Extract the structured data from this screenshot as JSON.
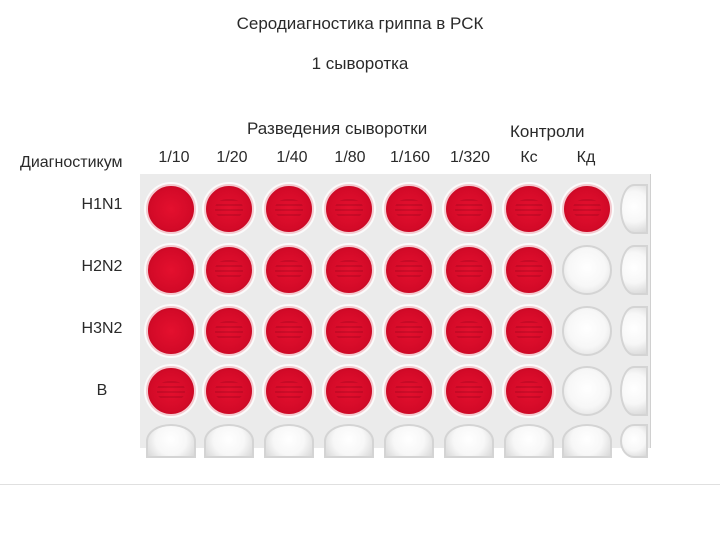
{
  "title": "Серодиагностика гриппа в РСК",
  "subtitle": "1 сыворотка",
  "header_dilutions": "Разведения сыворотки",
  "header_controls": "Контроли",
  "header_diagnosticum": "Диагностикум",
  "columns": [
    "1/10",
    "1/20",
    "1/40",
    "1/80",
    "1/160",
    "1/320",
    "Кс",
    "Кд"
  ],
  "rows": [
    {
      "label": "H1N1",
      "wells": [
        "red",
        "red-striped",
        "red-striped",
        "red-striped",
        "red-striped",
        "red-striped",
        "red-striped",
        "red-striped",
        "empty"
      ]
    },
    {
      "label": "H2N2",
      "wells": [
        "red",
        "red-striped",
        "red-striped",
        "red-striped",
        "red-striped",
        "red-striped",
        "red-striped",
        "empty",
        "empty"
      ]
    },
    {
      "label": "H3N2",
      "wells": [
        "red",
        "red-striped",
        "red-striped",
        "red-striped",
        "red-striped",
        "red-striped",
        "red-striped",
        "empty",
        "empty"
      ]
    },
    {
      "label": "В",
      "wells": [
        "red-striped",
        "red-striped",
        "red-striped",
        "red-striped",
        "red-striped",
        "red-striped",
        "red-striped",
        "empty",
        "empty"
      ]
    },
    {
      "label": "",
      "wells": [
        "empty",
        "empty",
        "empty",
        "empty",
        "empty",
        "empty",
        "empty",
        "empty",
        "empty"
      ]
    }
  ],
  "colors": {
    "hemolysis": "#d40a28",
    "empty_well": "#f4f4f4",
    "plate": "#ebebeb"
  }
}
